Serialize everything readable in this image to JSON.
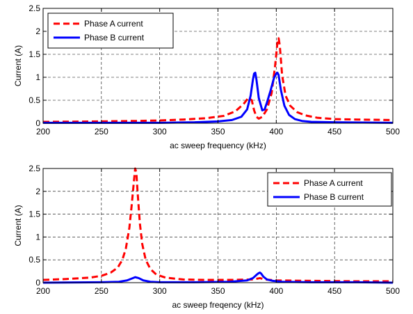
{
  "chart_data": [
    {
      "type": "line",
      "xlabel": "ac sweep frequency (kHz)",
      "ylabel": "Current (A)",
      "xlim": [
        200,
        500
      ],
      "ylim": [
        0,
        2.5
      ],
      "xticks": [
        200,
        250,
        300,
        350,
        400,
        450,
        500
      ],
      "yticks": [
        0,
        0.5,
        1,
        1.5,
        2,
        2.5
      ],
      "xtick_labels": [
        "200",
        "250",
        "300",
        "350",
        "400",
        "450",
        "500"
      ],
      "ytick_labels": [
        "0",
        "0.5",
        "1",
        "1.5",
        "2",
        "2.5"
      ],
      "grid": true,
      "legend_position": "top-left",
      "series": [
        {
          "name": "Phase A current",
          "color": "#ff0000",
          "dash": "dashed",
          "x": [
            200,
            250,
            280,
            300,
            320,
            340,
            355,
            365,
            372,
            376,
            379,
            381,
            383,
            385,
            388,
            392,
            396,
            399,
            401,
            402,
            403,
            405,
            408,
            412,
            418,
            425,
            435,
            450,
            470,
            500
          ],
          "y": [
            0.03,
            0.04,
            0.05,
            0.06,
            0.08,
            0.11,
            0.16,
            0.26,
            0.42,
            0.55,
            0.5,
            0.28,
            0.14,
            0.1,
            0.14,
            0.3,
            0.65,
            1.25,
            1.75,
            1.85,
            1.7,
            1.05,
            0.6,
            0.38,
            0.24,
            0.17,
            0.12,
            0.09,
            0.08,
            0.07
          ]
        },
        {
          "name": "Phase B current",
          "color": "#0000ff",
          "dash": "solid",
          "x": [
            200,
            250,
            300,
            330,
            350,
            362,
            370,
            375,
            378,
            380,
            381,
            382,
            383,
            385,
            388,
            390,
            392,
            395,
            398,
            400,
            401,
            402,
            404,
            407,
            411,
            416,
            422,
            430,
            450,
            500
          ],
          "y": [
            0.01,
            0.01,
            0.01,
            0.02,
            0.04,
            0.07,
            0.14,
            0.3,
            0.6,
            0.95,
            1.08,
            1.1,
            0.95,
            0.55,
            0.28,
            0.3,
            0.45,
            0.7,
            0.98,
            1.08,
            1.1,
            1.05,
            0.72,
            0.38,
            0.18,
            0.09,
            0.05,
            0.03,
            0.02,
            0.01
          ]
        }
      ]
    },
    {
      "type": "line",
      "xlabel": "ac sweep freqency (kHz)",
      "ylabel": "Current (A)",
      "xlim": [
        200,
        500
      ],
      "ylim": [
        0,
        2.5
      ],
      "xticks": [
        200,
        250,
        300,
        350,
        400,
        450,
        500
      ],
      "yticks": [
        0,
        0.5,
        1,
        1.5,
        2,
        2.5
      ],
      "xtick_labels": [
        "200",
        "250",
        "300",
        "350",
        "400",
        "450",
        "500"
      ],
      "ytick_labels": [
        "0",
        "0.5",
        "1",
        "1.5",
        "2",
        "2.5"
      ],
      "grid": true,
      "legend_position": "top-right",
      "series": [
        {
          "name": "Phase A current",
          "color": "#ff0000",
          "dash": "dashed",
          "x": [
            200,
            220,
            240,
            250,
            258,
            264,
            268,
            271,
            274,
            276,
            278,
            279,
            280,
            281,
            283,
            285,
            288,
            292,
            297,
            305,
            320,
            340,
            360,
            380,
            386,
            390,
            400,
            430,
            470,
            500
          ],
          "y": [
            0.06,
            0.08,
            0.11,
            0.15,
            0.22,
            0.33,
            0.5,
            0.75,
            1.2,
            1.7,
            2.25,
            2.5,
            2.4,
            2.0,
            1.3,
            0.85,
            0.5,
            0.3,
            0.18,
            0.11,
            0.07,
            0.06,
            0.06,
            0.07,
            0.1,
            0.07,
            0.05,
            0.04,
            0.03,
            0.03
          ]
        },
        {
          "name": "Phase B current",
          "color": "#0000ff",
          "dash": "solid",
          "x": [
            200,
            250,
            265,
            272,
            276,
            279,
            282,
            286,
            292,
            300,
            330,
            360,
            375,
            380,
            383,
            385,
            386,
            387,
            389,
            392,
            397,
            405,
            430,
            470,
            500
          ],
          "y": [
            0.0,
            0.01,
            0.02,
            0.05,
            0.09,
            0.12,
            0.1,
            0.05,
            0.02,
            0.01,
            0.01,
            0.02,
            0.05,
            0.1,
            0.17,
            0.21,
            0.22,
            0.2,
            0.13,
            0.07,
            0.04,
            0.02,
            0.01,
            0.01,
            0.0
          ]
        }
      ]
    }
  ]
}
